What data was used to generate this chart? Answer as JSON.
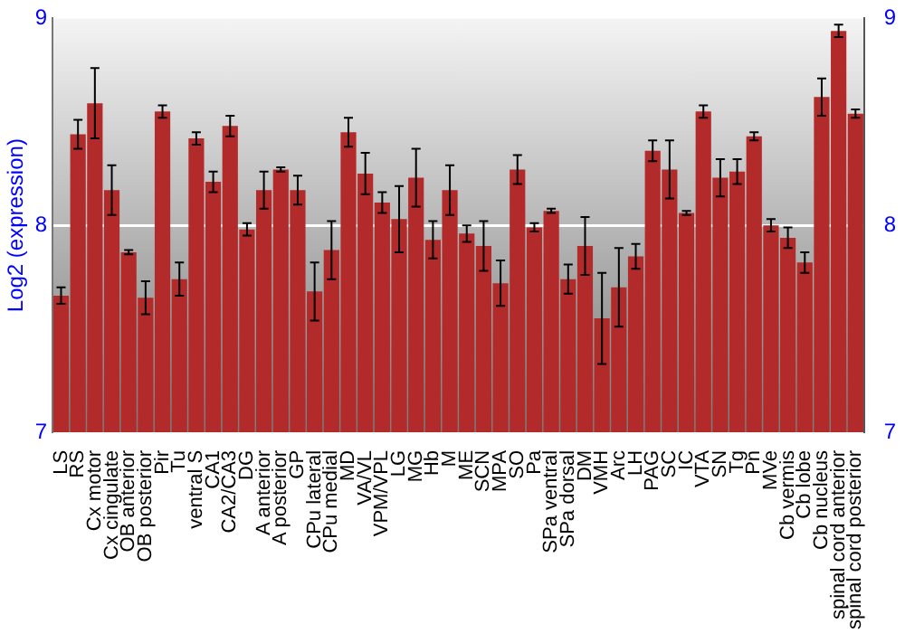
{
  "chart_data": {
    "type": "bar",
    "ylabel": "Log2 (expression)",
    "categories": [
      "LS",
      "RS",
      "Cx motor",
      "Cx cingulate",
      "OB anterior",
      "OB posterior",
      "Pir",
      "Tu",
      "ventral S",
      "CA1",
      "CA2/CA3",
      "DG",
      "A anterior",
      "A posterior",
      "GP",
      "CPu lateral",
      "CPu medial",
      "MD",
      "VA/VL",
      "VPM/VPL",
      "LG",
      "MG",
      "Hb",
      "M",
      "ME",
      "SCN",
      "MPA",
      "SO",
      "Pa",
      "SPa ventral",
      "SPa dorsal",
      "DM",
      "VMH",
      "Arc",
      "LH",
      "PAG",
      "SC",
      "IC",
      "VTA",
      "SN",
      "Tg",
      "Pn",
      "MVe",
      "Cb vermis",
      "Cb lobe",
      "Cb nucleus",
      "spinal cord anterior",
      "spinal cord posterior"
    ],
    "values": [
      7.66,
      8.44,
      8.59,
      8.17,
      7.87,
      7.65,
      8.55,
      7.74,
      8.42,
      8.21,
      8.48,
      7.98,
      8.17,
      8.27,
      8.17,
      7.68,
      7.88,
      8.45,
      8.25,
      8.11,
      8.03,
      8.23,
      7.93,
      8.17,
      7.96,
      7.9,
      7.72,
      8.27,
      7.99,
      8.07,
      7.74,
      7.9,
      7.55,
      7.7,
      7.85,
      8.36,
      8.27,
      8.06,
      8.55,
      8.23,
      8.26,
      8.43,
      8,
      7.94,
      7.82,
      8.62,
      8.94,
      8.54
    ],
    "errors": [
      0.04,
      0.07,
      0.17,
      0.12,
      0.01,
      0.08,
      0.03,
      0.08,
      0.03,
      0.05,
      0.05,
      0.03,
      0.09,
      0.01,
      0.07,
      0.14,
      0.14,
      0.07,
      0.1,
      0.05,
      0.16,
      0.14,
      0.09,
      0.12,
      0.04,
      0.12,
      0.11,
      0.07,
      0.02,
      0.01,
      0.07,
      0.14,
      0.22,
      0.19,
      0.06,
      0.05,
      0.14,
      0.01,
      0.03,
      0.09,
      0.06,
      0.02,
      0.03,
      0.05,
      0.05,
      0.09,
      0.03,
      0.02
    ],
    "color": "#b22a2a",
    "ylim": [
      7,
      9
    ],
    "yticks": [
      7,
      8,
      9
    ],
    "y2lim": [
      7,
      9
    ],
    "y2ticks": [
      7,
      8,
      9
    ],
    "grid": "y",
    "legend": false
  }
}
